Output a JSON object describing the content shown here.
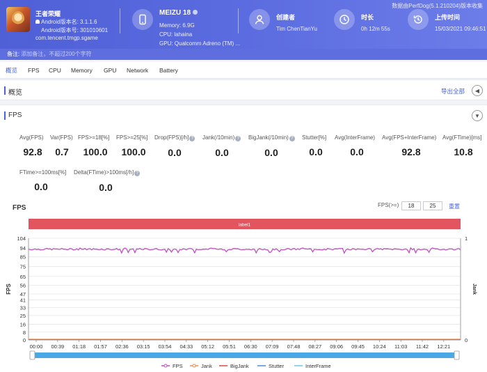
{
  "header": {
    "version_text": "数据由PerfDog(5.1.210204)版本收集",
    "game": {
      "name": "王者荣耀",
      "android_version_line": "Android版本名: 3.1.1.6",
      "android_code_line": "Android版本号: 301010601",
      "package": "com.tencent.tmgp.sgame"
    },
    "device": {
      "title": "MEIZU 18",
      "memory": "Memory: 6.9G",
      "cpu": "CPU: lahaina",
      "gpu": "GPU: Qualcomm Adreno (TM) ..."
    },
    "creator": {
      "label": "创建者",
      "value": "Tim ChenTianYu"
    },
    "duration": {
      "label": "时长",
      "value": "0h 12m 55s"
    },
    "upload": {
      "label": "上传时间",
      "value": "15/03/2021 09:46:51"
    },
    "note_label": "备注:",
    "note_placeholder": "添加备注，不超过200个字符"
  },
  "tabs": [
    "概览",
    "FPS",
    "CPU",
    "Memory",
    "GPU",
    "Network",
    "Battery"
  ],
  "active_tab": "概览",
  "overview": {
    "title": "概览",
    "export_label": "导出全部"
  },
  "fps_section": {
    "title": "FPS",
    "metrics": [
      {
        "label": "Avg(FPS)",
        "value": "92.8",
        "help": false
      },
      {
        "label": "Var(FPS)",
        "value": "0.7",
        "help": false
      },
      {
        "label": "FPS>=18[%]",
        "value": "100.0",
        "help": false
      },
      {
        "label": "FPS>=25[%]",
        "value": "100.0",
        "help": false
      },
      {
        "label": "Drop(FPS)[/h]",
        "value": "0.0",
        "help": true
      },
      {
        "label": "Jank(/10min)",
        "value": "0.0",
        "help": true
      },
      {
        "label": "BigJank(/10min)",
        "value": "0.0",
        "help": true
      },
      {
        "label": "Stutter[%]",
        "value": "0.0",
        "help": false
      },
      {
        "label": "Avg(InterFrame)",
        "value": "0.0",
        "help": false
      },
      {
        "label": "Avg(FPS+InterFrame)",
        "value": "92.8",
        "help": false
      },
      {
        "label": "Avg(FTime)[ms]",
        "value": "10.8",
        "help": false
      },
      {
        "label": "FTime>=100ms[%]",
        "value": "0.0",
        "help": false
      },
      {
        "label": "Delta(FTime)>100ms[/h]",
        "value": "0.0",
        "help": true
      }
    ],
    "chart_title": "FPS",
    "filter_label": "FPS(>=)",
    "filter_values": [
      "18",
      "25"
    ],
    "reset_label": "重置"
  },
  "colors": {
    "fps": "#c04fc0",
    "jank": "#f08a4b",
    "bigjank": "#e04a3a",
    "stutter": "#4a8fe0",
    "interframe": "#6ec6e6",
    "label_bar": "#e2545e",
    "accent": "#4a62d8"
  },
  "chart_data": {
    "type": "line",
    "label_bar": "label1",
    "ylabel": "FPS",
    "y2label": "Jank",
    "yticks": [
      0,
      8,
      16,
      25,
      33,
      41,
      47,
      56,
      65,
      75,
      85,
      94,
      104
    ],
    "y2ticks": [
      0,
      1
    ],
    "ylim": [
      0,
      104
    ],
    "x_ticks": [
      "00:00",
      "00:39",
      "01:18",
      "01:57",
      "02:36",
      "03:15",
      "03:54",
      "04:33",
      "05:12",
      "05:51",
      "06:30",
      "07:09",
      "07:48",
      "08:27",
      "09:06",
      "09:45",
      "10:24",
      "11:03",
      "11:42",
      "12:21"
    ],
    "duration_seconds": 775,
    "series": [
      {
        "name": "FPS",
        "baseline": 92.8,
        "variance": 0.7
      },
      {
        "name": "Jank",
        "constant": 0
      },
      {
        "name": "BigJank",
        "constant": 0
      },
      {
        "name": "Stutter",
        "constant": 0
      },
      {
        "name": "InterFrame",
        "constant": 0
      }
    ],
    "grid": true,
    "legend_position": "bottom"
  }
}
